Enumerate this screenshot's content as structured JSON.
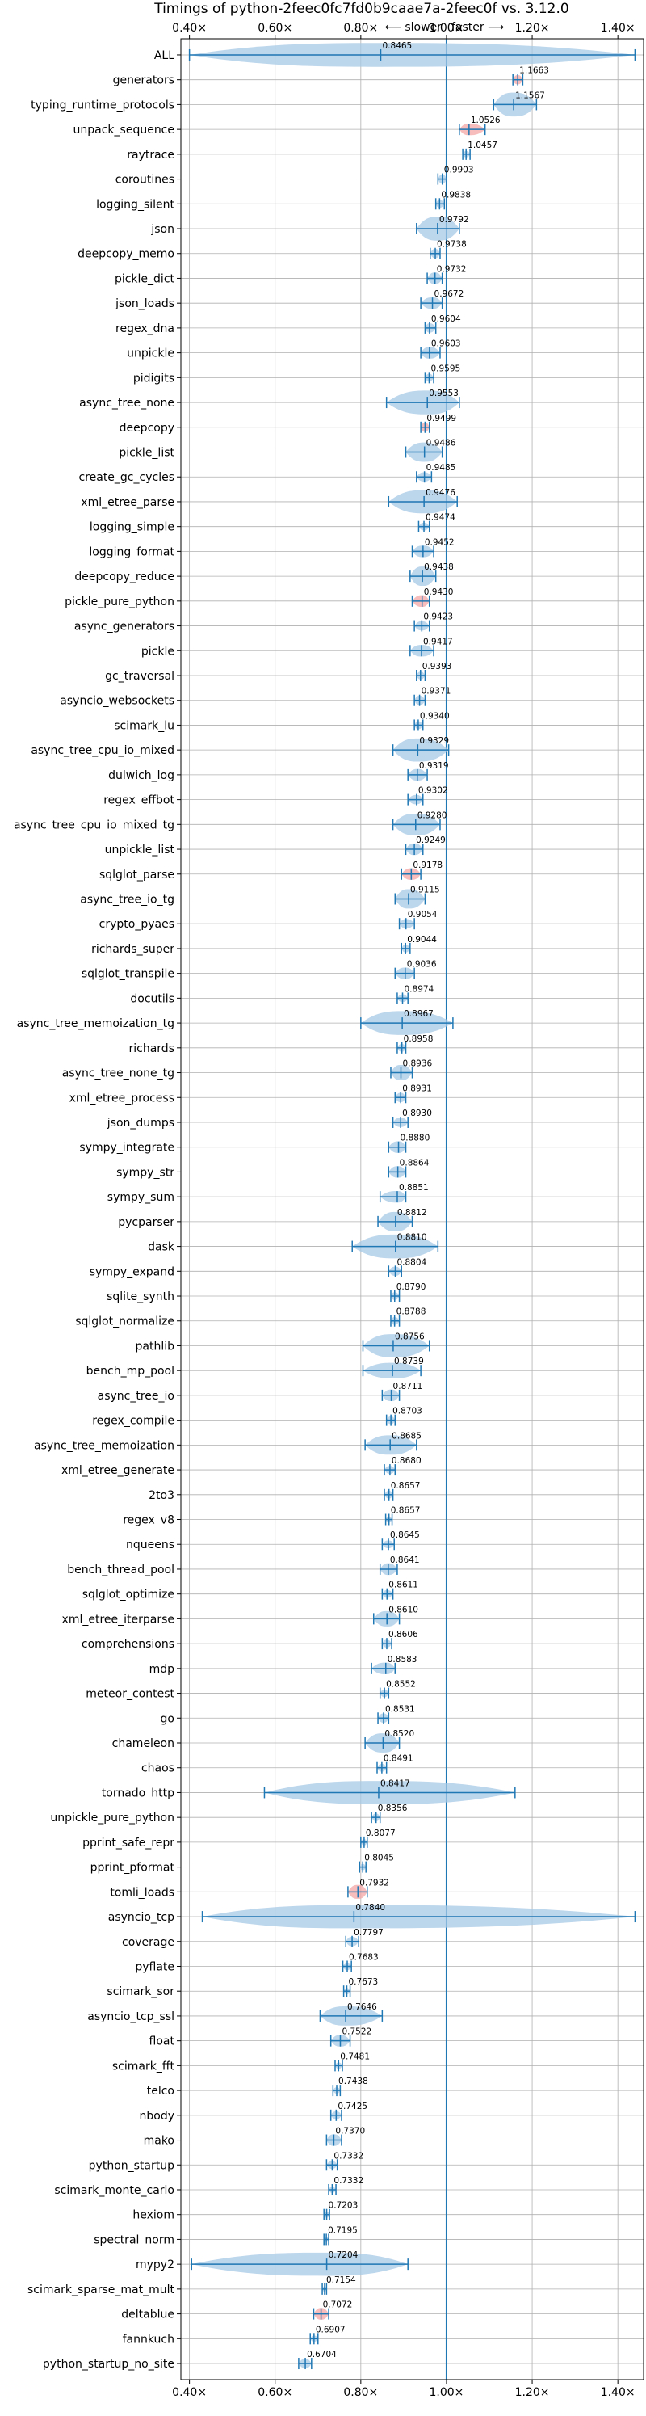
{
  "chart_data": {
    "type": "violin",
    "title": "Timings of python-2feec0fc7fd0b9caae7a-2feec0f vs. 3.12.0",
    "xlabel": "",
    "ylabel": "",
    "annotation_slower": "⟵ slower",
    "annotation_faster": "faster ⟶",
    "xlim": [
      0.38,
      1.46
    ],
    "xticks": [
      0.4,
      0.6,
      0.8,
      1.0,
      1.2,
      1.4
    ],
    "xtick_labels": [
      "0.40×",
      "0.60×",
      "0.80×",
      "1.00×",
      "1.20×",
      "1.40×"
    ],
    "reference_x": 1.0,
    "grid": true,
    "colors": {
      "violin": "#a6c8e6",
      "line": "#1f77b4",
      "highlight": "#f4a6a6",
      "reference": "#1f77b4"
    },
    "benchmarks": [
      {
        "name": "ALL",
        "value": 0.8465,
        "min": 0.4,
        "max": 1.44,
        "width": 0.13
      },
      {
        "name": "generators",
        "value": 1.1663,
        "min": 1.155,
        "max": 1.178,
        "width": 0.012,
        "highlight": true
      },
      {
        "name": "typing_runtime_protocols",
        "value": 1.1567,
        "min": 1.11,
        "max": 1.21,
        "width": 0.05
      },
      {
        "name": "unpack_sequence",
        "value": 1.0526,
        "min": 1.03,
        "max": 1.09,
        "width": 0.015,
        "highlight": true
      },
      {
        "name": "raytrace",
        "value": 1.0457,
        "min": 1.038,
        "max": 1.055,
        "width": 0.008
      },
      {
        "name": "coroutines",
        "value": 0.9903,
        "min": 0.98,
        "max": 1.0,
        "width": 0.012
      },
      {
        "name": "logging_silent",
        "value": 0.9838,
        "min": 0.975,
        "max": 0.995,
        "width": 0.01
      },
      {
        "name": "json",
        "value": 0.9792,
        "min": 0.93,
        "max": 1.03,
        "width": 0.035
      },
      {
        "name": "deepcopy_memo",
        "value": 0.9738,
        "min": 0.962,
        "max": 0.985,
        "width": 0.012
      },
      {
        "name": "pickle_dict",
        "value": 0.9732,
        "min": 0.955,
        "max": 0.99,
        "width": 0.015
      },
      {
        "name": "json_loads",
        "value": 0.9672,
        "min": 0.94,
        "max": 0.99,
        "width": 0.015
      },
      {
        "name": "regex_dna",
        "value": 0.9604,
        "min": 0.95,
        "max": 0.975,
        "width": 0.012
      },
      {
        "name": "unpickle",
        "value": 0.9603,
        "min": 0.94,
        "max": 0.985,
        "width": 0.015
      },
      {
        "name": "pidigits",
        "value": 0.9595,
        "min": 0.95,
        "max": 0.97,
        "width": 0.01
      },
      {
        "name": "async_tree_none",
        "value": 0.9553,
        "min": 0.86,
        "max": 1.03,
        "width": 0.04
      },
      {
        "name": "deepcopy",
        "value": 0.9499,
        "min": 0.94,
        "max": 0.96,
        "width": 0.012,
        "highlight": true
      },
      {
        "name": "pickle_list",
        "value": 0.9486,
        "min": 0.905,
        "max": 0.99,
        "width": 0.025
      },
      {
        "name": "create_gc_cycles",
        "value": 0.9485,
        "min": 0.93,
        "max": 0.965,
        "width": 0.012
      },
      {
        "name": "xml_etree_parse",
        "value": 0.9476,
        "min": 0.865,
        "max": 1.025,
        "width": 0.03
      },
      {
        "name": "logging_simple",
        "value": 0.9474,
        "min": 0.935,
        "max": 0.96,
        "width": 0.01
      },
      {
        "name": "logging_format",
        "value": 0.9452,
        "min": 0.92,
        "max": 0.97,
        "width": 0.015
      },
      {
        "name": "deepcopy_reduce",
        "value": 0.9438,
        "min": 0.915,
        "max": 0.975,
        "width": 0.025
      },
      {
        "name": "pickle_pure_python",
        "value": 0.943,
        "min": 0.92,
        "max": 0.96,
        "width": 0.015,
        "highlight": true
      },
      {
        "name": "async_generators",
        "value": 0.9423,
        "min": 0.925,
        "max": 0.96,
        "width": 0.012
      },
      {
        "name": "pickle",
        "value": 0.9417,
        "min": 0.915,
        "max": 0.97,
        "width": 0.015
      },
      {
        "name": "gc_traversal",
        "value": 0.9393,
        "min": 0.93,
        "max": 0.95,
        "width": 0.01
      },
      {
        "name": "asyncio_websockets",
        "value": 0.9371,
        "min": 0.925,
        "max": 0.95,
        "width": 0.012
      },
      {
        "name": "scimark_lu",
        "value": 0.934,
        "min": 0.925,
        "max": 0.945,
        "width": 0.01
      },
      {
        "name": "async_tree_cpu_io_mixed",
        "value": 0.9329,
        "min": 0.875,
        "max": 1.005,
        "width": 0.03
      },
      {
        "name": "dulwich_log",
        "value": 0.9319,
        "min": 0.91,
        "max": 0.955,
        "width": 0.015
      },
      {
        "name": "regex_effbot",
        "value": 0.9302,
        "min": 0.91,
        "max": 0.945,
        "width": 0.012
      },
      {
        "name": "async_tree_cpu_io_mixed_tg",
        "value": 0.928,
        "min": 0.875,
        "max": 0.985,
        "width": 0.028
      },
      {
        "name": "unpickle_list",
        "value": 0.9249,
        "min": 0.905,
        "max": 0.945,
        "width": 0.015
      },
      {
        "name": "sqlglot_parse",
        "value": 0.9178,
        "min": 0.895,
        "max": 0.94,
        "width": 0.015,
        "highlight": true
      },
      {
        "name": "async_tree_io_tg",
        "value": 0.9115,
        "min": 0.88,
        "max": 0.95,
        "width": 0.025
      },
      {
        "name": "crypto_pyaes",
        "value": 0.9054,
        "min": 0.89,
        "max": 0.925,
        "width": 0.012
      },
      {
        "name": "richards_super",
        "value": 0.9044,
        "min": 0.895,
        "max": 0.915,
        "width": 0.01
      },
      {
        "name": "sqlglot_transpile",
        "value": 0.9036,
        "min": 0.88,
        "max": 0.925,
        "width": 0.015
      },
      {
        "name": "docutils",
        "value": 0.8974,
        "min": 0.885,
        "max": 0.91,
        "width": 0.01
      },
      {
        "name": "async_tree_memoization_tg",
        "value": 0.8967,
        "min": 0.8,
        "max": 1.015,
        "width": 0.035
      },
      {
        "name": "richards",
        "value": 0.8958,
        "min": 0.885,
        "max": 0.905,
        "width": 0.01
      },
      {
        "name": "async_tree_none_tg",
        "value": 0.8936,
        "min": 0.87,
        "max": 0.92,
        "width": 0.02
      },
      {
        "name": "xml_etree_process",
        "value": 0.8931,
        "min": 0.88,
        "max": 0.905,
        "width": 0.012
      },
      {
        "name": "json_dumps",
        "value": 0.893,
        "min": 0.875,
        "max": 0.91,
        "width": 0.012
      },
      {
        "name": "sympy_integrate",
        "value": 0.888,
        "min": 0.865,
        "max": 0.905,
        "width": 0.015
      },
      {
        "name": "sympy_str",
        "value": 0.8864,
        "min": 0.865,
        "max": 0.905,
        "width": 0.015
      },
      {
        "name": "sympy_sum",
        "value": 0.8851,
        "min": 0.845,
        "max": 0.905,
        "width": 0.015
      },
      {
        "name": "pycparser",
        "value": 0.8812,
        "min": 0.84,
        "max": 0.92,
        "width": 0.025
      },
      {
        "name": "dask",
        "value": 0.881,
        "min": 0.78,
        "max": 0.98,
        "width": 0.035
      },
      {
        "name": "sympy_expand",
        "value": 0.8804,
        "min": 0.865,
        "max": 0.895,
        "width": 0.012
      },
      {
        "name": "sqlite_synth",
        "value": 0.879,
        "min": 0.87,
        "max": 0.89,
        "width": 0.01
      },
      {
        "name": "sqlglot_normalize",
        "value": 0.8788,
        "min": 0.87,
        "max": 0.89,
        "width": 0.01
      },
      {
        "name": "pathlib",
        "value": 0.8756,
        "min": 0.805,
        "max": 0.96,
        "width": 0.03
      },
      {
        "name": "bench_mp_pool",
        "value": 0.8739,
        "min": 0.805,
        "max": 0.94,
        "width": 0.02
      },
      {
        "name": "async_tree_io",
        "value": 0.8711,
        "min": 0.85,
        "max": 0.89,
        "width": 0.015
      },
      {
        "name": "regex_compile",
        "value": 0.8703,
        "min": 0.86,
        "max": 0.88,
        "width": 0.01
      },
      {
        "name": "async_tree_memoization",
        "value": 0.8685,
        "min": 0.81,
        "max": 0.93,
        "width": 0.025
      },
      {
        "name": "xml_etree_generate",
        "value": 0.868,
        "min": 0.855,
        "max": 0.88,
        "width": 0.01
      },
      {
        "name": "2to3",
        "value": 0.8657,
        "min": 0.855,
        "max": 0.875,
        "width": 0.01
      },
      {
        "name": "regex_v8",
        "value": 0.8657,
        "min": 0.858,
        "max": 0.873,
        "width": 0.008
      },
      {
        "name": "nqueens",
        "value": 0.8645,
        "min": 0.85,
        "max": 0.878,
        "width": 0.01
      },
      {
        "name": "bench_thread_pool",
        "value": 0.8641,
        "min": 0.845,
        "max": 0.885,
        "width": 0.015
      },
      {
        "name": "sqlglot_optimize",
        "value": 0.8611,
        "min": 0.85,
        "max": 0.875,
        "width": 0.01
      },
      {
        "name": "xml_etree_iterparse",
        "value": 0.861,
        "min": 0.83,
        "max": 0.89,
        "width": 0.02
      },
      {
        "name": "comprehensions",
        "value": 0.8606,
        "min": 0.85,
        "max": 0.872,
        "width": 0.01
      },
      {
        "name": "mdp",
        "value": 0.8583,
        "min": 0.825,
        "max": 0.88,
        "width": 0.015
      },
      {
        "name": "meteor_contest",
        "value": 0.8552,
        "min": 0.845,
        "max": 0.865,
        "width": 0.01
      },
      {
        "name": "go",
        "value": 0.8531,
        "min": 0.84,
        "max": 0.865,
        "width": 0.012
      },
      {
        "name": "chameleon",
        "value": 0.852,
        "min": 0.81,
        "max": 0.89,
        "width": 0.025
      },
      {
        "name": "chaos",
        "value": 0.8491,
        "min": 0.838,
        "max": 0.86,
        "width": 0.01
      },
      {
        "name": "tornado_http",
        "value": 0.8417,
        "min": 0.575,
        "max": 1.16,
        "width": 0.03
      },
      {
        "name": "unpickle_pure_python",
        "value": 0.8356,
        "min": 0.825,
        "max": 0.845,
        "width": 0.01
      },
      {
        "name": "pprint_safe_repr",
        "value": 0.8077,
        "min": 0.8,
        "max": 0.815,
        "width": 0.008
      },
      {
        "name": "pprint_pformat",
        "value": 0.8045,
        "min": 0.797,
        "max": 0.812,
        "width": 0.008
      },
      {
        "name": "tomli_loads",
        "value": 0.7932,
        "min": 0.77,
        "max": 0.815,
        "width": 0.018,
        "highlight": true
      },
      {
        "name": "asyncio_tcp",
        "value": 0.784,
        "min": 0.43,
        "max": 1.44,
        "width": 0.03
      },
      {
        "name": "coverage",
        "value": 0.7797,
        "min": 0.765,
        "max": 0.795,
        "width": 0.012
      },
      {
        "name": "pyflate",
        "value": 0.7683,
        "min": 0.758,
        "max": 0.778,
        "width": 0.01
      },
      {
        "name": "scimark_sor",
        "value": 0.7673,
        "min": 0.76,
        "max": 0.775,
        "width": 0.008
      },
      {
        "name": "asyncio_tcp_ssl",
        "value": 0.7646,
        "min": 0.705,
        "max": 0.85,
        "width": 0.025
      },
      {
        "name": "float",
        "value": 0.7522,
        "min": 0.73,
        "max": 0.775,
        "width": 0.015
      },
      {
        "name": "scimark_fft",
        "value": 0.7481,
        "min": 0.74,
        "max": 0.757,
        "width": 0.008
      },
      {
        "name": "telco",
        "value": 0.7438,
        "min": 0.735,
        "max": 0.752,
        "width": 0.008
      },
      {
        "name": "nbody",
        "value": 0.7425,
        "min": 0.73,
        "max": 0.755,
        "width": 0.01
      },
      {
        "name": "mako",
        "value": 0.737,
        "min": 0.72,
        "max": 0.755,
        "width": 0.015
      },
      {
        "name": "python_startup",
        "value": 0.7332,
        "min": 0.72,
        "max": 0.745,
        "width": 0.01
      },
      {
        "name": "scimark_monte_carlo",
        "value": 0.7332,
        "min": 0.725,
        "max": 0.742,
        "width": 0.008
      },
      {
        "name": "hexiom",
        "value": 0.7203,
        "min": 0.714,
        "max": 0.727,
        "width": 0.008
      },
      {
        "name": "spectral_norm",
        "value": 0.7195,
        "min": 0.714,
        "max": 0.725,
        "width": 0.007
      },
      {
        "name": "mypy2",
        "value": 0.7204,
        "min": 0.405,
        "max": 0.91,
        "width": 0.03
      },
      {
        "name": "scimark_sparse_mat_mult",
        "value": 0.7154,
        "min": 0.71,
        "max": 0.72,
        "width": 0.007
      },
      {
        "name": "deltablue",
        "value": 0.7072,
        "min": 0.69,
        "max": 0.725,
        "width": 0.015,
        "highlight": true
      },
      {
        "name": "fannkuch",
        "value": 0.6907,
        "min": 0.682,
        "max": 0.7,
        "width": 0.008
      },
      {
        "name": "python_startup_no_site",
        "value": 0.6704,
        "min": 0.655,
        "max": 0.685,
        "width": 0.012
      }
    ]
  }
}
